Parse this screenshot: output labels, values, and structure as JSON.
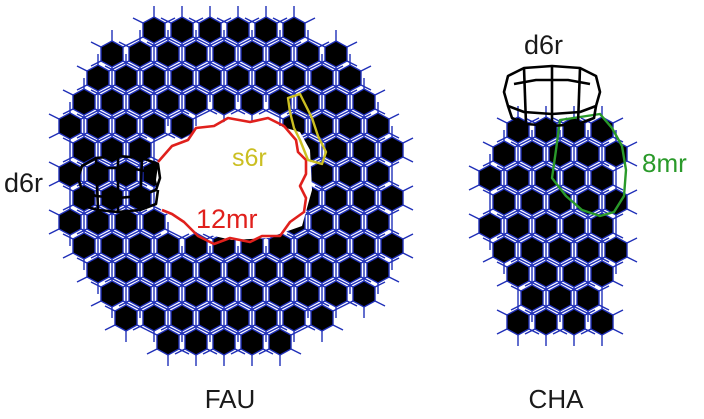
{
  "frameworks": [
    {
      "name": "FAU",
      "labels": {
        "ring_large": "12mr",
        "ring_single": "s6r",
        "ring_double": "d6r"
      }
    },
    {
      "name": "CHA",
      "labels": {
        "ring_large": "8mr",
        "ring_double": "d6r"
      }
    }
  ],
  "colors": {
    "framework": "#1f2fb8",
    "ring_12mr": "#e0201c",
    "ring_s6r": "#cbbf22",
    "ring_8mr": "#2a9a2a",
    "ring_d6r": "#000000",
    "text": "#1a1a1a"
  }
}
